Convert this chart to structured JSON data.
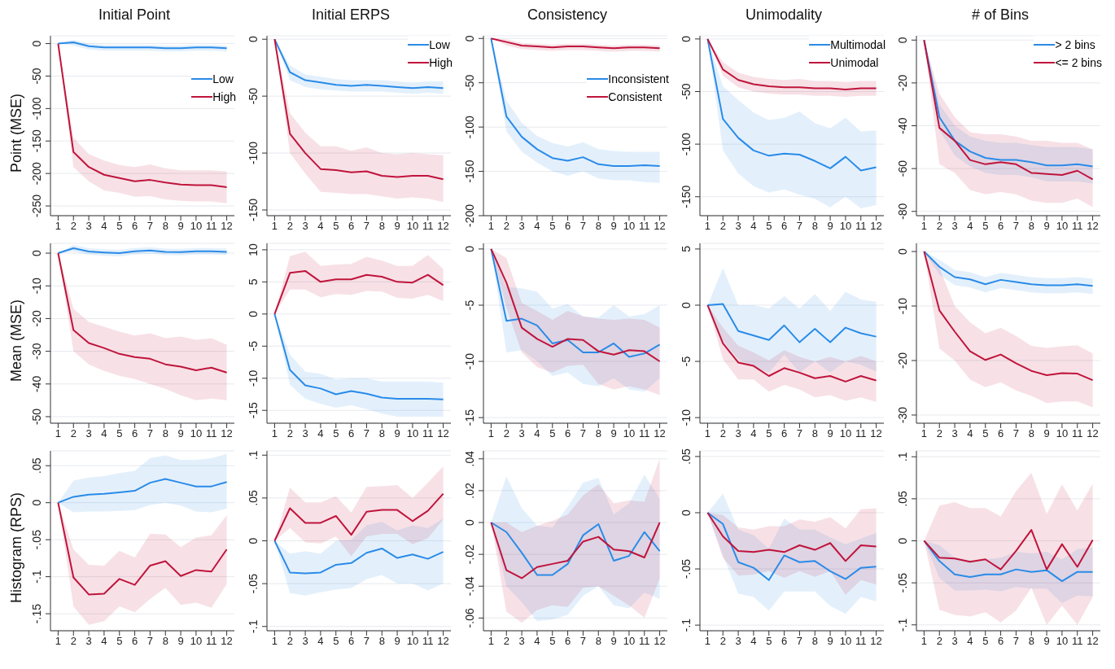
{
  "chart_data": [
    {
      "type": "line",
      "title": "Initial Point",
      "ylabel": "Point (MSE)",
      "x": [
        1,
        2,
        3,
        4,
        5,
        6,
        7,
        8,
        9,
        10,
        11,
        12
      ],
      "xlim": [
        0.5,
        12.5
      ],
      "xticks": [
        1,
        2,
        3,
        4,
        5,
        6,
        7,
        8,
        9,
        10,
        11,
        12
      ],
      "ylim": [
        -265,
        12
      ],
      "yticks": [
        0,
        -50,
        -100,
        -150,
        -200,
        -250
      ],
      "grid": "y",
      "legend": "right",
      "series": [
        {
          "name": "Low",
          "color": "#2a8be8",
          "values": [
            0,
            2,
            -4,
            -6,
            -6,
            -6,
            -6,
            -7,
            -7,
            -6,
            -6,
            -7
          ],
          "lower": [
            0,
            -3,
            -9,
            -11,
            -11,
            -11,
            -11,
            -12,
            -12,
            -11,
            -11,
            -12
          ],
          "upper": [
            0,
            6,
            0,
            -2,
            -2,
            -2,
            -2,
            -3,
            -3,
            -2,
            -2,
            -3
          ]
        },
        {
          "name": "High",
          "color": "#c0143c",
          "values": [
            0,
            -167,
            -190,
            -202,
            -207,
            -212,
            -210,
            -214,
            -217,
            -218,
            -218,
            -221
          ],
          "lower": [
            0,
            -190,
            -212,
            -226,
            -230,
            -236,
            -235,
            -240,
            -242,
            -243,
            -243,
            -246
          ],
          "upper": [
            0,
            -145,
            -170,
            -180,
            -187,
            -190,
            -186,
            -192,
            -195,
            -195,
            -195,
            -197
          ]
        }
      ]
    },
    {
      "type": "line",
      "title": "Initial ERPS",
      "x": [
        1,
        2,
        3,
        4,
        5,
        6,
        7,
        8,
        9,
        10,
        11,
        12
      ],
      "xlim": [
        0.5,
        12.5
      ],
      "xticks": [
        1,
        2,
        3,
        4,
        5,
        6,
        7,
        8,
        9,
        10,
        11,
        12
      ],
      "ylim": [
        -155,
        3
      ],
      "yticks": [
        0,
        -50,
        -100,
        -150
      ],
      "grid": "y",
      "legend": "top right",
      "series": [
        {
          "name": "Low",
          "color": "#2a8be8",
          "values": [
            0,
            -29,
            -36,
            -38,
            -40,
            -41,
            -40,
            -41,
            -42,
            -43,
            -42,
            -43
          ],
          "lower": [
            0,
            -36,
            -42,
            -44,
            -45,
            -46,
            -46,
            -46,
            -47,
            -48,
            -47,
            -48
          ],
          "upper": [
            0,
            -23,
            -31,
            -33,
            -35,
            -36,
            -36,
            -36,
            -37,
            -38,
            -37,
            -37
          ]
        },
        {
          "name": "High",
          "color": "#c0143c",
          "values": [
            0,
            -83,
            -100,
            -114,
            -115,
            -117,
            -116,
            -120,
            -121,
            -120,
            -120,
            -123
          ],
          "lower": [
            0,
            -100,
            -118,
            -134,
            -135,
            -136,
            -136,
            -138,
            -140,
            -139,
            -140,
            -143
          ],
          "upper": [
            0,
            -65,
            -82,
            -94,
            -94,
            -98,
            -95,
            -100,
            -101,
            -100,
            -101,
            -102
          ]
        }
      ]
    },
    {
      "type": "line",
      "title": "Consistency",
      "x": [
        1,
        2,
        3,
        4,
        5,
        6,
        7,
        8,
        9,
        10,
        11,
        12
      ],
      "xlim": [
        0.5,
        12.5
      ],
      "xticks": [
        1,
        2,
        3,
        4,
        5,
        6,
        7,
        8,
        9,
        10,
        11,
        12
      ],
      "ylim": [
        -200,
        3
      ],
      "yticks": [
        0,
        -50,
        -100,
        -150,
        -200
      ],
      "grid": "y",
      "legend": "right",
      "series": [
        {
          "name": "Inconsistent",
          "color": "#2a8be8",
          "values": [
            0,
            -88,
            -111,
            -125,
            -135,
            -138,
            -134,
            -142,
            -144,
            -144,
            -143,
            -144
          ],
          "lower": [
            0,
            -105,
            -128,
            -140,
            -150,
            -155,
            -150,
            -158,
            -160,
            -160,
            -162,
            -163
          ],
          "upper": [
            0,
            -70,
            -95,
            -110,
            -118,
            -122,
            -117,
            -125,
            -127,
            -128,
            -128,
            -128
          ]
        },
        {
          "name": "Consistent",
          "color": "#c0143c",
          "values": [
            0,
            -4,
            -8,
            -9,
            -10,
            -9,
            -9,
            -10,
            -11,
            -10,
            -10,
            -11
          ],
          "lower": [
            0,
            -8,
            -12,
            -13,
            -14,
            -13,
            -13,
            -14,
            -15,
            -14,
            -14,
            -15
          ],
          "upper": [
            0,
            -1,
            -5,
            -6,
            -7,
            -6,
            -6,
            -7,
            -8,
            -7,
            -7,
            -8
          ]
        }
      ]
    },
    {
      "type": "line",
      "title": "Unimodality",
      "x": [
        1,
        2,
        3,
        4,
        5,
        6,
        7,
        8,
        9,
        10,
        11,
        12
      ],
      "xlim": [
        0.5,
        12.5
      ],
      "xticks": [
        1,
        2,
        3,
        4,
        5,
        6,
        7,
        8,
        9,
        10,
        11,
        12
      ],
      "ylim": [
        -168,
        3
      ],
      "yticks": [
        0,
        -50,
        -100,
        -150
      ],
      "grid": "y",
      "legend": "top right",
      "series": [
        {
          "name": "Multimodal",
          "color": "#2a8be8",
          "values": [
            0,
            -76,
            -94,
            -106,
            -111,
            -109,
            -110,
            -116,
            -123,
            -112,
            -125,
            -122
          ],
          "lower": [
            0,
            -106,
            -128,
            -140,
            -146,
            -143,
            -148,
            -152,
            -160,
            -150,
            -161,
            -158
          ],
          "upper": [
            0,
            -45,
            -58,
            -70,
            -77,
            -75,
            -69,
            -80,
            -85,
            -75,
            -88,
            -87
          ]
        },
        {
          "name": "Unimodal",
          "color": "#c0143c",
          "values": [
            0,
            -29,
            -39,
            -43,
            -45,
            -46,
            -46,
            -47,
            -47,
            -48,
            -47,
            -47
          ],
          "lower": [
            0,
            -35,
            -46,
            -50,
            -52,
            -53,
            -53,
            -54,
            -54,
            -55,
            -54,
            -54
          ],
          "upper": [
            0,
            -22,
            -32,
            -36,
            -38,
            -39,
            -38,
            -40,
            -40,
            -41,
            -40,
            -40
          ]
        }
      ]
    },
    {
      "type": "line",
      "title": "# of Bins",
      "x": [
        1,
        2,
        3,
        4,
        5,
        6,
        7,
        8,
        9,
        10,
        11,
        12
      ],
      "xlim": [
        0.5,
        12.5
      ],
      "xticks": [
        1,
        2,
        3,
        4,
        5,
        6,
        7,
        8,
        9,
        10,
        11,
        12
      ],
      "ylim": [
        -82,
        2
      ],
      "yticks": [
        0,
        -20,
        -40,
        -60,
        -80
      ],
      "grid": "y",
      "legend": "top right",
      "series": [
        {
          "name": "> 2 bins",
          "color": "#2a8be8",
          "values": [
            0,
            -36,
            -47,
            -52,
            -55,
            -56,
            -56,
            -57,
            -58.5,
            -58.5,
            -58,
            -59
          ],
          "lower": [
            0,
            -42,
            -54,
            -59,
            -62,
            -63,
            -63,
            -64,
            -66,
            -66,
            -66,
            -67
          ],
          "upper": [
            0,
            -30,
            -40,
            -45,
            -47,
            -48,
            -48,
            -49,
            -50,
            -50,
            -50,
            -51
          ]
        },
        {
          "name": "<= 2 bins",
          "color": "#c0143c",
          "values": [
            0,
            -41,
            -47,
            -56,
            -58,
            -57,
            -58,
            -62,
            -62.5,
            -63,
            -61,
            -65
          ],
          "lower": [
            0,
            -58,
            -62,
            -70,
            -72,
            -71,
            -72,
            -75,
            -76,
            -76,
            -74,
            -78
          ],
          "upper": [
            0,
            -25,
            -36,
            -43,
            -44,
            -44,
            -45,
            -47,
            -47,
            -48,
            -48,
            -51
          ]
        }
      ]
    },
    {
      "type": "line",
      "ylabel": "Mean (MSE)",
      "x": [
        1,
        2,
        3,
        4,
        5,
        6,
        7,
        8,
        9,
        10,
        11,
        12
      ],
      "xlim": [
        0.5,
        12.5
      ],
      "xticks": [
        1,
        2,
        3,
        4,
        5,
        6,
        7,
        8,
        9,
        10,
        11,
        12
      ],
      "ylim": [
        -52,
        3
      ],
      "yticks": [
        0,
        -10,
        -20,
        -30,
        -40,
        -50
      ],
      "grid": "y",
      "series": [
        {
          "color": "#2a8be8",
          "values": [
            0,
            1.5,
            0.5,
            0.2,
            0,
            0.6,
            0.8,
            0.4,
            0.3,
            0.6,
            0.6,
            0.4
          ],
          "lower": [
            0,
            0.5,
            -0.5,
            -0.8,
            -1,
            -0.4,
            -0.2,
            -0.6,
            -0.7,
            -0.4,
            -0.4,
            -0.6
          ],
          "upper": [
            0,
            2.5,
            1.5,
            1.2,
            1,
            1.6,
            1.8,
            1.4,
            1.3,
            1.6,
            1.6,
            1.4
          ]
        },
        {
          "color": "#c0143c",
          "values": [
            0,
            -23.5,
            -27.5,
            -29,
            -30.8,
            -31.8,
            -32.3,
            -34,
            -34.7,
            -35.8,
            -35,
            -36.5
          ],
          "lower": [
            0,
            -30,
            -34,
            -36,
            -37.5,
            -38.5,
            -40,
            -41.5,
            -43.5,
            -45,
            -44.5,
            -45
          ],
          "upper": [
            0,
            -17,
            -21,
            -22.5,
            -24,
            -25.2,
            -24.5,
            -26,
            -25.5,
            -26.5,
            -26,
            -28
          ]
        }
      ]
    },
    {
      "type": "line",
      "x": [
        1,
        2,
        3,
        4,
        5,
        6,
        7,
        8,
        9,
        10,
        11,
        12
      ],
      "xlim": [
        0.5,
        12.5
      ],
      "xticks": [
        1,
        2,
        3,
        4,
        5,
        6,
        7,
        8,
        9,
        10,
        11,
        12
      ],
      "ylim": [
        -17,
        11
      ],
      "yticks": [
        10,
        5,
        0,
        -5,
        -10,
        -15
      ],
      "grid": "y",
      "series": [
        {
          "color": "#2a8be8",
          "values": [
            0,
            -8.7,
            -11.1,
            -11.6,
            -12.5,
            -12,
            -12.4,
            -13,
            -13.2,
            -13.2,
            -13.2,
            -13.3
          ],
          "lower": [
            0,
            -11,
            -13.2,
            -14,
            -14.6,
            -14.2,
            -14.8,
            -15.5,
            -16,
            -16,
            -16,
            -16
          ],
          "upper": [
            0,
            -6.3,
            -9,
            -9.3,
            -10.2,
            -10,
            -10,
            -10.5,
            -10.5,
            -10.5,
            -10.5,
            -10.7
          ]
        },
        {
          "color": "#c0143c",
          "values": [
            0,
            6.4,
            6.7,
            5,
            5.4,
            5.4,
            6.1,
            5.8,
            5,
            4.9,
            6.1,
            4.5
          ],
          "lower": [
            0,
            3.8,
            3.8,
            2.6,
            3.1,
            3,
            3.6,
            3.5,
            2.5,
            2.4,
            3,
            2
          ],
          "upper": [
            0,
            9,
            9.7,
            7.5,
            7.7,
            7.8,
            8.9,
            8.3,
            7.5,
            7.5,
            9.2,
            7
          ]
        }
      ]
    },
    {
      "type": "line",
      "x": [
        1,
        2,
        3,
        4,
        5,
        6,
        7,
        8,
        9,
        10,
        11,
        12
      ],
      "xlim": [
        0.5,
        12.5
      ],
      "xticks": [
        1,
        2,
        3,
        4,
        5,
        6,
        7,
        8,
        9,
        10,
        11,
        12
      ],
      "ylim": [
        -15.5,
        0.5
      ],
      "yticks": [
        0,
        -5,
        -10,
        -15
      ],
      "grid": "y",
      "series": [
        {
          "color": "#2a8be8",
          "values": [
            0,
            -6.4,
            -6.2,
            -6.8,
            -8.4,
            -8.1,
            -9.2,
            -9.2,
            -8.4,
            -9.6,
            -9.3,
            -8.5
          ],
          "lower": [
            0,
            -9.2,
            -9,
            -10,
            -11.3,
            -11,
            -12,
            -12.2,
            -11.5,
            -12.5,
            -12.7,
            -11.5
          ],
          "upper": [
            0,
            -3.4,
            -3.5,
            -3.8,
            -5.3,
            -4.9,
            -6,
            -6.1,
            -5,
            -6,
            -5.8,
            -5
          ]
        },
        {
          "color": "#c0143c",
          "values": [
            0,
            -3,
            -7,
            -8,
            -8.7,
            -8,
            -8.1,
            -9.1,
            -9.4,
            -9,
            -9.1,
            -10
          ],
          "lower": [
            0,
            -5.2,
            -9.2,
            -10.5,
            -11,
            -10.4,
            -10.3,
            -12,
            -12.5,
            -12.2,
            -12.5,
            -13
          ],
          "upper": [
            0,
            -0.8,
            -4.8,
            -5.5,
            -6.3,
            -5.5,
            -6,
            -6.2,
            -6.3,
            -6.2,
            -6.3,
            -7
          ]
        }
      ]
    },
    {
      "type": "line",
      "x": [
        1,
        2,
        3,
        4,
        5,
        6,
        7,
        8,
        9,
        10,
        11,
        12
      ],
      "xlim": [
        0.5,
        12.5
      ],
      "xticks": [
        1,
        2,
        3,
        4,
        5,
        6,
        7,
        8,
        9,
        10,
        11,
        12
      ],
      "ylim": [
        -10.5,
        5.5
      ],
      "yticks": [
        5,
        0,
        -5,
        -10
      ],
      "grid": "y",
      "series": [
        {
          "color": "#2a8be8",
          "values": [
            0,
            0.1,
            -2.3,
            -2.7,
            -3.1,
            -1.8,
            -3.3,
            -2.1,
            -3.3,
            -2,
            -2.5,
            -2.8
          ],
          "lower": [
            0,
            -3.2,
            -4.8,
            -5.5,
            -6,
            -4.4,
            -6,
            -5,
            -6,
            -5,
            -5.3,
            -5.9
          ],
          "upper": [
            0,
            3.3,
            0,
            0,
            -0.3,
            0.8,
            -0.3,
            1,
            -0.5,
            1.2,
            0.5,
            0.3
          ]
        },
        {
          "color": "#c0143c",
          "values": [
            0,
            -3.4,
            -5.1,
            -5.4,
            -6.3,
            -5.6,
            -6,
            -6.5,
            -6.3,
            -6.8,
            -6.3,
            -6.7
          ],
          "lower": [
            0,
            -4.8,
            -6.6,
            -6.6,
            -7.7,
            -7.1,
            -7.5,
            -8.2,
            -8,
            -8.5,
            -8.2,
            -8.6
          ],
          "upper": [
            0,
            -2,
            -3.6,
            -4.2,
            -4.9,
            -4,
            -4.6,
            -5,
            -4.6,
            -5,
            -4.5,
            -5
          ]
        }
      ]
    },
    {
      "type": "line",
      "x": [
        1,
        2,
        3,
        4,
        5,
        6,
        7,
        8,
        9,
        10,
        11,
        12
      ],
      "xlim": [
        0.5,
        12.5
      ],
      "xticks": [
        1,
        2,
        3,
        4,
        5,
        6,
        7,
        8,
        9,
        10,
        11,
        12
      ],
      "ylim": [
        -31.5,
        1.5
      ],
      "yticks": [
        0,
        -10,
        -20,
        -30
      ],
      "grid": "y",
      "series": [
        {
          "color": "#2a8be8",
          "values": [
            0,
            -2.8,
            -4.7,
            -5.1,
            -6,
            -5.2,
            -5.6,
            -6,
            -6.2,
            -6.2,
            -6,
            -6.3
          ],
          "lower": [
            0,
            -4.2,
            -6.2,
            -6.6,
            -7.5,
            -6.7,
            -7.1,
            -7.5,
            -7.7,
            -7.7,
            -7.5,
            -7.8
          ],
          "upper": [
            0,
            -1.5,
            -3.4,
            -3.8,
            -4.7,
            -3.9,
            -4.3,
            -4.7,
            -4.9,
            -4.9,
            -4.7,
            -5
          ]
        },
        {
          "color": "#c0143c",
          "values": [
            0,
            -10.8,
            -14.7,
            -18.3,
            -19.9,
            -18.9,
            -20.5,
            -21.9,
            -22.7,
            -22.3,
            -22.4,
            -23.6
          ],
          "lower": [
            0,
            -17.8,
            -20,
            -23.5,
            -24.9,
            -24,
            -25.5,
            -26.5,
            -27.8,
            -27.5,
            -27.5,
            -28.6
          ],
          "upper": [
            0,
            -3,
            -10,
            -13,
            -15,
            -14,
            -15.5,
            -17.3,
            -17.7,
            -17.4,
            -17.2,
            -18.7
          ]
        }
      ]
    },
    {
      "type": "line",
      "ylabel": "Histogram (RPS)",
      "x": [
        1,
        2,
        3,
        4,
        5,
        6,
        7,
        8,
        9,
        10,
        11,
        12
      ],
      "xlim": [
        0.5,
        12.5
      ],
      "xticks": [
        1,
        2,
        3,
        4,
        5,
        6,
        7,
        8,
        9,
        10,
        11,
        12
      ],
      "ylim": [
        -0.173,
        0.07
      ],
      "yticks": [
        {
          "value": 0.05,
          "label": ".05"
        },
        0,
        {
          "value": -0.05,
          "label": "-.05"
        },
        {
          "value": -0.1,
          "label": "-.1"
        },
        {
          "value": -0.15,
          "label": "-.15"
        }
      ],
      "grid": "y",
      "series": [
        {
          "color": "#2a8be8",
          "values": [
            0,
            0.008,
            0.011,
            0.012,
            0.014,
            0.016,
            0.027,
            0.032,
            0.027,
            0.022,
            0.022,
            0.028
          ],
          "lower": [
            0,
            -0.013,
            -0.012,
            -0.012,
            -0.011,
            -0.01,
            -0.003,
            0,
            -0.004,
            -0.012,
            -0.013,
            -0.008
          ],
          "upper": [
            0,
            0.03,
            0.034,
            0.036,
            0.04,
            0.043,
            0.06,
            0.064,
            0.058,
            0.058,
            0.06,
            0.066
          ]
        },
        {
          "color": "#c0143c",
          "values": [
            0,
            -0.101,
            -0.124,
            -0.123,
            -0.103,
            -0.111,
            -0.085,
            -0.079,
            -0.099,
            -0.091,
            -0.093,
            -0.063
          ],
          "lower": [
            0,
            -0.14,
            -0.165,
            -0.16,
            -0.14,
            -0.148,
            -0.13,
            -0.115,
            -0.138,
            -0.135,
            -0.142,
            -0.11
          ],
          "upper": [
            0,
            -0.063,
            -0.084,
            -0.085,
            -0.065,
            -0.074,
            -0.042,
            -0.043,
            -0.06,
            -0.047,
            -0.044,
            -0.017
          ]
        }
      ]
    },
    {
      "type": "line",
      "x": [
        1,
        2,
        3,
        4,
        5,
        6,
        7,
        8,
        9,
        10,
        11,
        12
      ],
      "xlim": [
        0.5,
        12.5
      ],
      "xticks": [
        1,
        2,
        3,
        4,
        5,
        6,
        7,
        8,
        9,
        10,
        11,
        12
      ],
      "ylim": [
        -0.105,
        0.105
      ],
      "yticks": [
        {
          "value": 0.1,
          "label": ".1"
        },
        {
          "value": 0.05,
          "label": ".05"
        },
        0,
        {
          "value": -0.05,
          "label": "-.05"
        },
        {
          "value": -0.1,
          "label": "-.1"
        }
      ],
      "grid": "y",
      "series": [
        {
          "color": "#2a8be8",
          "values": [
            0,
            -0.037,
            -0.038,
            -0.037,
            -0.028,
            -0.026,
            -0.014,
            -0.009,
            -0.02,
            -0.016,
            -0.021,
            -0.013
          ],
          "lower": [
            0,
            -0.061,
            -0.064,
            -0.06,
            -0.057,
            -0.055,
            -0.045,
            -0.04,
            -0.05,
            -0.05,
            -0.058,
            -0.05
          ],
          "upper": [
            0,
            -0.015,
            -0.012,
            -0.015,
            0,
            0.001,
            0.018,
            0.022,
            0.012,
            0.018,
            0.015,
            0.026
          ]
        },
        {
          "color": "#c0143c",
          "values": [
            0,
            0.038,
            0.021,
            0.021,
            0.029,
            0.007,
            0.034,
            0.036,
            0.036,
            0.023,
            0.035,
            0.055
          ],
          "lower": [
            0,
            0.015,
            -0.002,
            -0.003,
            0.005,
            -0.018,
            0.005,
            0.008,
            0.008,
            -0.004,
            0.003,
            0.025
          ],
          "upper": [
            0,
            0.062,
            0.045,
            0.045,
            0.052,
            0.033,
            0.063,
            0.064,
            0.065,
            0.05,
            0.068,
            0.087
          ]
        }
      ]
    },
    {
      "type": "line",
      "x": [
        1,
        2,
        3,
        4,
        5,
        6,
        7,
        8,
        9,
        10,
        11,
        12
      ],
      "xlim": [
        0.5,
        12.5
      ],
      "xticks": [
        1,
        2,
        3,
        4,
        5,
        6,
        7,
        8,
        9,
        10,
        11,
        12
      ],
      "ylim": [
        -0.068,
        0.045
      ],
      "yticks": [
        {
          "value": 0.04,
          "label": ".04"
        },
        {
          "value": 0.02,
          "label": ".02"
        },
        0,
        {
          "value": -0.02,
          "label": "-.02"
        },
        {
          "value": -0.04,
          "label": "-.04"
        },
        {
          "value": -0.06,
          "label": "-.06"
        }
      ],
      "grid": "y",
      "series": [
        {
          "color": "#2a8be8",
          "values": [
            0,
            -0.006,
            -0.019,
            -0.033,
            -0.033,
            -0.026,
            -0.008,
            -0.001,
            -0.024,
            -0.021,
            -0.006,
            -0.018
          ],
          "lower": [
            0,
            -0.04,
            -0.05,
            -0.062,
            -0.061,
            -0.058,
            -0.046,
            -0.04,
            -0.052,
            -0.054,
            -0.044,
            -0.048
          ],
          "upper": [
            0,
            0.029,
            0.009,
            -0.002,
            -0.003,
            0.01,
            0.025,
            0.028,
            0.005,
            0.012,
            0.03,
            0.015
          ]
        },
        {
          "color": "#c0143c",
          "values": [
            0,
            -0.03,
            -0.035,
            -0.028,
            -0.026,
            -0.024,
            -0.012,
            -0.009,
            -0.017,
            -0.018,
            -0.022,
            0
          ],
          "lower": [
            0,
            -0.056,
            -0.063,
            -0.055,
            -0.052,
            -0.053,
            -0.041,
            -0.04,
            -0.046,
            -0.052,
            -0.06,
            -0.035
          ],
          "upper": [
            0,
            0,
            -0.006,
            -0.002,
            0.001,
            0.005,
            0.017,
            0.024,
            0.012,
            0.014,
            0.013,
            0.04
          ]
        }
      ]
    },
    {
      "type": "line",
      "x": [
        1,
        2,
        3,
        4,
        5,
        6,
        7,
        8,
        9,
        10,
        11,
        12
      ],
      "xlim": [
        0.5,
        12.5
      ],
      "xticks": [
        1,
        2,
        3,
        4,
        5,
        6,
        7,
        8,
        9,
        10,
        11,
        12
      ],
      "ylim": [
        -0.105,
        0.055
      ],
      "yticks": [
        {
          "value": 0.05,
          "label": ".05"
        },
        0,
        {
          "value": -0.05,
          "label": "-.05"
        },
        {
          "value": -0.1,
          "label": "-.1"
        }
      ],
      "grid": "y",
      "series": [
        {
          "color": "#2a8be8",
          "values": [
            0,
            -0.01,
            -0.044,
            -0.049,
            -0.06,
            -0.038,
            -0.044,
            -0.043,
            -0.052,
            -0.059,
            -0.049,
            -0.048
          ],
          "lower": [
            0,
            -0.038,
            -0.072,
            -0.075,
            -0.087,
            -0.07,
            -0.07,
            -0.07,
            -0.083,
            -0.09,
            -0.075,
            -0.079
          ],
          "upper": [
            0,
            0.017,
            -0.015,
            -0.02,
            -0.032,
            -0.005,
            -0.015,
            -0.015,
            -0.022,
            -0.028,
            -0.023,
            -0.018
          ]
        },
        {
          "color": "#c0143c",
          "values": [
            0,
            -0.021,
            -0.034,
            -0.035,
            -0.033,
            -0.035,
            -0.029,
            -0.033,
            -0.027,
            -0.043,
            -0.029,
            -0.03
          ],
          "lower": [
            0,
            -0.04,
            -0.056,
            -0.055,
            -0.052,
            -0.058,
            -0.052,
            -0.057,
            -0.052,
            -0.073,
            -0.06,
            -0.064
          ],
          "upper": [
            0,
            -0.002,
            -0.013,
            -0.015,
            -0.012,
            -0.012,
            -0.006,
            -0.008,
            -0.004,
            -0.014,
            0.003,
            0.004
          ]
        }
      ]
    },
    {
      "type": "line",
      "x": [
        1,
        2,
        3,
        4,
        5,
        6,
        7,
        8,
        9,
        10,
        11,
        12
      ],
      "xlim": [
        0.5,
        12.5
      ],
      "xticks": [
        1,
        2,
        3,
        4,
        5,
        6,
        7,
        8,
        9,
        10,
        11,
        12
      ],
      "ylim": [
        -0.107,
        0.107
      ],
      "yticks": [
        {
          "value": 0.1,
          "label": ".1"
        },
        {
          "value": 0.05,
          "label": ".05"
        },
        0,
        {
          "value": -0.05,
          "label": "-.05"
        },
        {
          "value": -0.1,
          "label": "-.1"
        }
      ],
      "grid": "y",
      "series": [
        {
          "color": "#2a8be8",
          "values": [
            0,
            -0.024,
            -0.04,
            -0.043,
            -0.04,
            -0.04,
            -0.034,
            -0.037,
            -0.035,
            -0.048,
            -0.037,
            -0.037
          ],
          "lower": [
            0,
            -0.044,
            -0.059,
            -0.059,
            -0.058,
            -0.06,
            -0.055,
            -0.057,
            -0.057,
            -0.074,
            -0.065,
            -0.066
          ],
          "upper": [
            0,
            -0.005,
            -0.02,
            -0.023,
            -0.022,
            -0.02,
            -0.013,
            -0.015,
            -0.013,
            -0.022,
            -0.01,
            -0.008
          ]
        },
        {
          "color": "#c0143c",
          "values": [
            0,
            -0.02,
            -0.021,
            -0.025,
            -0.022,
            -0.034,
            -0.012,
            0.013,
            -0.034,
            -0.004,
            -0.031,
            0.001
          ],
          "lower": [
            0,
            -0.082,
            -0.088,
            -0.09,
            -0.085,
            -0.097,
            -0.083,
            -0.056,
            -0.1,
            -0.077,
            -0.1,
            -0.067
          ],
          "upper": [
            0,
            0.042,
            0.046,
            0.039,
            0.039,
            0.029,
            0.059,
            0.081,
            0.032,
            0.067,
            0.036,
            0.068
          ]
        }
      ]
    }
  ]
}
